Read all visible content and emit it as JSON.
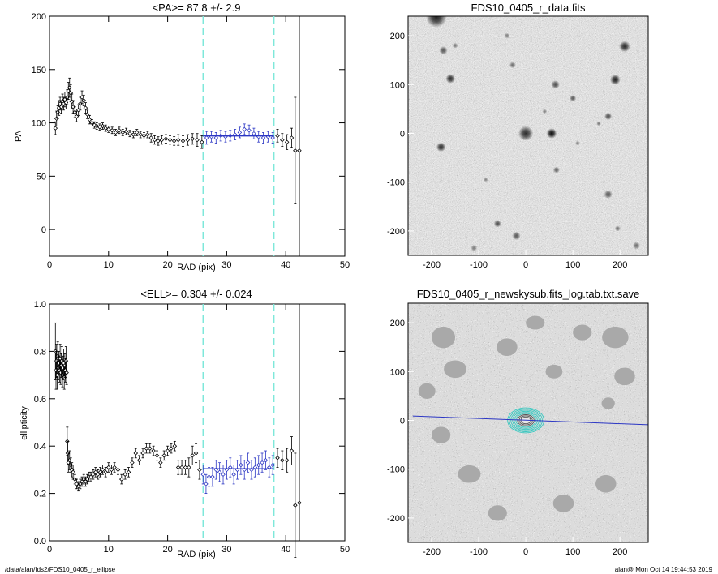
{
  "chart_data": [
    {
      "type": "scatter",
      "title": "<PA>=  87.8 +/-   2.9",
      "xlabel": "RAD (pix)",
      "ylabel": "PA",
      "xlim": [
        0,
        50
      ],
      "ylim": [
        -25,
        200
      ],
      "xticks": [
        0,
        10,
        20,
        30,
        40,
        50
      ],
      "yticks": [
        0,
        50,
        100,
        150,
        200
      ],
      "fit_range": [
        26,
        38
      ],
      "fit_value": 87.8,
      "points": [
        [
          1.0,
          95,
          6
        ],
        [
          1.2,
          104,
          7
        ],
        [
          1.4,
          110,
          6
        ],
        [
          1.6,
          114,
          7
        ],
        [
          1.8,
          118,
          6
        ],
        [
          2.0,
          115,
          6
        ],
        [
          2.2,
          120,
          7
        ],
        [
          2.4,
          118,
          6
        ],
        [
          2.6,
          122,
          7
        ],
        [
          2.8,
          119,
          6
        ],
        [
          3.0,
          124,
          7
        ],
        [
          3.2,
          130,
          8
        ],
        [
          3.4,
          133,
          9
        ],
        [
          3.6,
          128,
          8
        ],
        [
          3.8,
          120,
          7
        ],
        [
          4.0,
          115,
          6
        ],
        [
          4.3,
          110,
          5
        ],
        [
          4.6,
          106,
          5
        ],
        [
          4.9,
          112,
          5
        ],
        [
          5.2,
          118,
          6
        ],
        [
          5.5,
          124,
          6
        ],
        [
          5.8,
          121,
          5
        ],
        [
          6.1,
          114,
          5
        ],
        [
          6.4,
          108,
          4
        ],
        [
          6.8,
          103,
          4
        ],
        [
          7.2,
          100,
          3
        ],
        [
          7.6,
          98,
          3
        ],
        [
          8.0,
          97,
          3
        ],
        [
          8.5,
          96,
          3
        ],
        [
          9.0,
          97,
          3
        ],
        [
          9.5,
          95,
          3
        ],
        [
          10.0,
          94,
          3
        ],
        [
          10.6,
          93,
          3
        ],
        [
          11.2,
          91,
          3
        ],
        [
          11.8,
          93,
          3
        ],
        [
          12.4,
          91,
          3
        ],
        [
          13.0,
          92,
          3
        ],
        [
          13.6,
          90,
          3
        ],
        [
          14.2,
          89,
          3
        ],
        [
          14.8,
          91,
          3
        ],
        [
          15.4,
          89,
          3
        ],
        [
          16.0,
          88,
          3
        ],
        [
          16.6,
          89,
          3
        ],
        [
          17.2,
          86,
          4
        ],
        [
          17.8,
          84,
          4
        ],
        [
          18.4,
          83,
          4
        ],
        [
          19.0,
          84,
          4
        ],
        [
          19.7,
          85,
          4
        ],
        [
          20.4,
          84,
          4
        ],
        [
          21.1,
          83,
          4
        ],
        [
          21.8,
          84,
          5
        ],
        [
          22.6,
          83,
          5
        ],
        [
          23.4,
          84,
          5
        ],
        [
          24.2,
          85,
          5
        ],
        [
          25.0,
          84,
          6
        ],
        [
          25.8,
          82,
          6
        ],
        [
          26.6,
          86,
          6
        ],
        [
          27.4,
          87,
          5
        ],
        [
          28.2,
          86,
          5
        ],
        [
          29.0,
          88,
          5
        ],
        [
          29.8,
          87,
          5
        ],
        [
          30.6,
          88,
          5
        ],
        [
          31.4,
          89,
          5
        ],
        [
          32.2,
          91,
          5
        ],
        [
          33.0,
          94,
          5
        ],
        [
          33.8,
          93,
          5
        ],
        [
          34.6,
          90,
          5
        ],
        [
          35.4,
          87,
          5
        ],
        [
          36.2,
          86,
          5
        ],
        [
          37.0,
          87,
          5
        ],
        [
          37.8,
          86,
          5
        ],
        [
          38.6,
          88,
          6
        ],
        [
          39.4,
          84,
          6
        ],
        [
          40.2,
          82,
          7
        ],
        [
          41.0,
          86,
          9
        ],
        [
          41.6,
          74,
          50
        ],
        [
          42.3,
          74,
          0
        ]
      ]
    },
    {
      "type": "scatter",
      "title": "<ELL>= 0.304 +/-  0.024",
      "xlabel": "RAD (pix)",
      "ylabel": "ellipticity",
      "xlim": [
        0,
        50
      ],
      "ylim": [
        0,
        1
      ],
      "xticks": [
        0,
        10,
        20,
        30,
        40,
        50
      ],
      "yticks": [
        0.0,
        0.2,
        0.4,
        0.6,
        0.8,
        1.0
      ],
      "fit_range": [
        26,
        38
      ],
      "fit_value": 0.304,
      "points": [
        [
          1.0,
          0.8,
          0.12
        ],
        [
          1.1,
          0.72,
          0.08
        ],
        [
          1.2,
          0.76,
          0.07
        ],
        [
          1.3,
          0.7,
          0.06
        ],
        [
          1.4,
          0.78,
          0.06
        ],
        [
          1.5,
          0.73,
          0.05
        ],
        [
          1.6,
          0.75,
          0.05
        ],
        [
          1.7,
          0.72,
          0.05
        ],
        [
          1.8,
          0.77,
          0.06
        ],
        [
          1.9,
          0.71,
          0.05
        ],
        [
          2.0,
          0.74,
          0.05
        ],
        [
          2.1,
          0.76,
          0.06
        ],
        [
          2.2,
          0.7,
          0.05
        ],
        [
          2.3,
          0.73,
          0.05
        ],
        [
          2.4,
          0.75,
          0.06
        ],
        [
          2.5,
          0.69,
          0.05
        ],
        [
          2.6,
          0.74,
          0.05
        ],
        [
          2.7,
          0.72,
          0.05
        ],
        [
          2.8,
          0.76,
          0.06
        ],
        [
          2.9,
          0.71,
          0.05
        ],
        [
          3.0,
          0.42,
          0.06
        ],
        [
          3.1,
          0.37,
          0.05
        ],
        [
          3.2,
          0.33,
          0.04
        ],
        [
          3.4,
          0.34,
          0.04
        ],
        [
          3.6,
          0.32,
          0.03
        ],
        [
          3.8,
          0.3,
          0.03
        ],
        [
          4.0,
          0.29,
          0.03
        ],
        [
          4.3,
          0.26,
          0.02
        ],
        [
          4.6,
          0.24,
          0.02
        ],
        [
          4.9,
          0.23,
          0.02
        ],
        [
          5.2,
          0.24,
          0.02
        ],
        [
          5.5,
          0.25,
          0.02
        ],
        [
          5.8,
          0.26,
          0.02
        ],
        [
          6.1,
          0.25,
          0.02
        ],
        [
          6.4,
          0.26,
          0.02
        ],
        [
          6.7,
          0.27,
          0.02
        ],
        [
          7.0,
          0.27,
          0.02
        ],
        [
          7.4,
          0.28,
          0.02
        ],
        [
          7.8,
          0.29,
          0.02
        ],
        [
          8.2,
          0.28,
          0.02
        ],
        [
          8.6,
          0.29,
          0.02
        ],
        [
          9.0,
          0.3,
          0.02
        ],
        [
          9.5,
          0.29,
          0.02
        ],
        [
          10.0,
          0.31,
          0.02
        ],
        [
          10.5,
          0.3,
          0.02
        ],
        [
          11.0,
          0.31,
          0.02
        ],
        [
          11.6,
          0.3,
          0.02
        ],
        [
          12.2,
          0.26,
          0.02
        ],
        [
          12.8,
          0.28,
          0.02
        ],
        [
          13.4,
          0.29,
          0.02
        ],
        [
          14.0,
          0.33,
          0.02
        ],
        [
          14.6,
          0.37,
          0.02
        ],
        [
          15.2,
          0.34,
          0.02
        ],
        [
          15.8,
          0.37,
          0.02
        ],
        [
          16.4,
          0.39,
          0.02
        ],
        [
          17.0,
          0.39,
          0.02
        ],
        [
          17.6,
          0.38,
          0.02
        ],
        [
          18.2,
          0.36,
          0.02
        ],
        [
          18.8,
          0.33,
          0.02
        ],
        [
          19.4,
          0.36,
          0.02
        ],
        [
          20.0,
          0.38,
          0.02
        ],
        [
          20.6,
          0.39,
          0.02
        ],
        [
          21.2,
          0.4,
          0.02
        ],
        [
          21.8,
          0.31,
          0.03
        ],
        [
          22.4,
          0.31,
          0.03
        ],
        [
          23.0,
          0.31,
          0.03
        ],
        [
          23.6,
          0.31,
          0.04
        ],
        [
          24.2,
          0.36,
          0.04
        ],
        [
          24.8,
          0.37,
          0.04
        ],
        [
          25.4,
          0.3,
          0.04
        ],
        [
          26.0,
          0.28,
          0.04
        ],
        [
          26.5,
          0.24,
          0.04
        ],
        [
          27.0,
          0.27,
          0.04
        ],
        [
          27.6,
          0.27,
          0.04
        ],
        [
          28.2,
          0.3,
          0.04
        ],
        [
          28.8,
          0.29,
          0.04
        ],
        [
          29.4,
          0.28,
          0.04
        ],
        [
          30.0,
          0.3,
          0.04
        ],
        [
          30.6,
          0.31,
          0.04
        ],
        [
          31.2,
          0.28,
          0.04
        ],
        [
          31.8,
          0.3,
          0.04
        ],
        [
          32.4,
          0.32,
          0.04
        ],
        [
          33.0,
          0.3,
          0.04
        ],
        [
          33.6,
          0.33,
          0.04
        ],
        [
          34.2,
          0.3,
          0.04
        ],
        [
          34.8,
          0.31,
          0.04
        ],
        [
          35.4,
          0.32,
          0.04
        ],
        [
          36.0,
          0.33,
          0.04
        ],
        [
          36.6,
          0.34,
          0.04
        ],
        [
          37.2,
          0.31,
          0.04
        ],
        [
          37.8,
          0.32,
          0.04
        ],
        [
          38.6,
          0.35,
          0.04
        ],
        [
          39.4,
          0.34,
          0.04
        ],
        [
          40.2,
          0.34,
          0.05
        ],
        [
          41.0,
          0.38,
          0.06
        ],
        [
          41.6,
          0.15,
          0.22
        ],
        [
          42.3,
          0.16,
          0.0
        ]
      ]
    },
    {
      "type": "heatmap",
      "title": "FDS10_0405_r_data.fits",
      "xlim": [
        -250,
        260
      ],
      "ylim": [
        -250,
        240
      ],
      "xticks": [
        -200,
        -100,
        0,
        100,
        200
      ],
      "yticks": [
        -200,
        -100,
        0,
        100,
        200
      ],
      "sources": [
        [
          -190,
          238,
          22,
          0.85
        ],
        [
          -175,
          170,
          9,
          0.6
        ],
        [
          -160,
          112,
          10,
          0.8
        ],
        [
          -40,
          200,
          6,
          0.45
        ],
        [
          -28,
          140,
          7,
          0.5
        ],
        [
          0,
          0,
          16,
          0.8
        ],
        [
          55,
          0,
          11,
          0.95
        ],
        [
          63,
          100,
          9,
          0.65
        ],
        [
          100,
          72,
          7,
          0.6
        ],
        [
          155,
          20,
          5,
          0.45
        ],
        [
          190,
          110,
          11,
          0.85
        ],
        [
          210,
          178,
          12,
          0.8
        ],
        [
          175,
          35,
          8,
          0.65
        ],
        [
          -180,
          -28,
          10,
          0.8
        ],
        [
          -60,
          -185,
          8,
          0.65
        ],
        [
          -20,
          -210,
          9,
          0.6
        ],
        [
          65,
          -75,
          7,
          0.55
        ],
        [
          175,
          -125,
          9,
          0.6
        ],
        [
          195,
          -195,
          6,
          0.5
        ],
        [
          -150,
          180,
          6,
          0.45
        ],
        [
          40,
          45,
          5,
          0.4
        ],
        [
          -85,
          -95,
          5,
          0.4
        ],
        [
          110,
          -20,
          5,
          0.4
        ],
        [
          -110,
          -235,
          7,
          0.45
        ],
        [
          235,
          -230,
          8,
          0.5
        ]
      ]
    },
    {
      "type": "heatmap",
      "title": "FDS10_0405_r_newskysub.fits_log.tab.txt.save",
      "xlim": [
        -250,
        260
      ],
      "ylim": [
        -250,
        240
      ],
      "xticks": [
        -200,
        -100,
        0,
        100,
        200
      ],
      "yticks": [
        -200,
        -100,
        0,
        100,
        200
      ],
      "pa_line": {
        "x": [
          -240,
          260
        ],
        "y": [
          9,
          -9
        ]
      },
      "masks": [
        [
          -175,
          170,
          25,
          22
        ],
        [
          -40,
          150,
          22,
          18
        ],
        [
          60,
          100,
          18,
          14
        ],
        [
          190,
          170,
          28,
          22
        ],
        [
          -180,
          -30,
          20,
          17
        ],
        [
          175,
          35,
          14,
          12
        ],
        [
          -150,
          105,
          24,
          18
        ],
        [
          120,
          180,
          20,
          16
        ],
        [
          -60,
          -190,
          20,
          16
        ],
        [
          170,
          -130,
          22,
          18
        ],
        [
          -120,
          -110,
          24,
          18
        ],
        [
          80,
          -170,
          22,
          18
        ],
        [
          210,
          90,
          22,
          18
        ],
        [
          -210,
          60,
          18,
          16
        ],
        [
          20,
          200,
          20,
          14
        ]
      ]
    }
  ],
  "footer": {
    "path": "/data/alan/fds2/FDS10_0405_r_ellipse",
    "stamp": "alan@  Mon Oct 14 19:44:53 2019"
  },
  "colors": {
    "fit_line": "#2b36c4",
    "fit_bounds": "#7ee8da",
    "contour": "#37c8c0",
    "pa_line": "#2b36c4",
    "mask": "#a9a9a9"
  }
}
